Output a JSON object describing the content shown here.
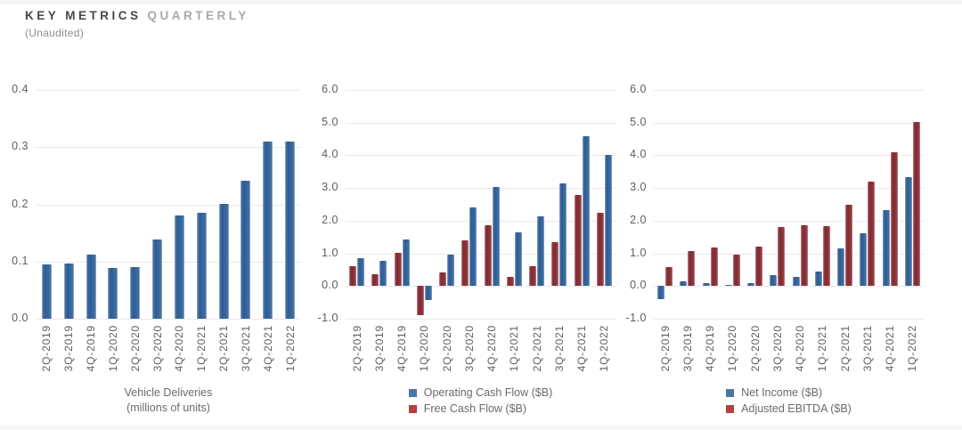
{
  "header": {
    "title_primary": "KEY METRICS",
    "title_secondary": "QUARTERLY",
    "subtitle": "(Unaudited)"
  },
  "colors": {
    "bar_blue": "#34619a",
    "bar_red": "#8c2f36",
    "legend_swatch_blue": "#4a77ab",
    "legend_swatch_red": "#b4403f",
    "gridline": "#eaeaea",
    "axis_text": "#5f5f5f",
    "legend_text": "#6b6b6b"
  },
  "chart_data": [
    {
      "type": "bar",
      "title": "Vehicle Deliveries (millions of units)",
      "legend_lines": [
        "Vehicle Deliveries",
        "(millions of units)"
      ],
      "legend_position": "bottom",
      "grid": true,
      "categories": [
        "2Q-2019",
        "3Q-2019",
        "4Q-2019",
        "1Q-2020",
        "2Q-2020",
        "3Q-2020",
        "4Q-2020",
        "1Q-2021",
        "2Q-2021",
        "3Q-2021",
        "4Q-2021",
        "1Q-2022"
      ],
      "series": [
        {
          "name": "Vehicle Deliveries",
          "color": "blue",
          "values": [
            0.095,
            0.097,
            0.112,
            0.088,
            0.091,
            0.139,
            0.181,
            0.185,
            0.201,
            0.241,
            0.309,
            0.31
          ]
        }
      ],
      "ylim": [
        0,
        0.4
      ],
      "yticks": [
        {
          "value": 0.4,
          "label": "0.4"
        },
        {
          "value": 0.3,
          "label": "0.3"
        },
        {
          "value": 0.2,
          "label": "0.2"
        },
        {
          "value": 0.1,
          "label": "0.1"
        },
        {
          "value": 0.0,
          "label": "0.0"
        }
      ]
    },
    {
      "type": "bar",
      "title": "Operating Cash Flow / Free Cash Flow ($B)",
      "legend": [
        {
          "label": "Operating Cash Flow ($B)",
          "color": "blue"
        },
        {
          "label": "Free Cash Flow ($B)",
          "color": "red"
        }
      ],
      "legend_position": "bottom",
      "grid": true,
      "categories": [
        "2Q-2019",
        "3Q-2019",
        "4Q-2019",
        "1Q-2020",
        "2Q-2020",
        "3Q-2020",
        "4Q-2020",
        "1Q-2021",
        "2Q-2021",
        "3Q-2021",
        "4Q-2021",
        "1Q-2022"
      ],
      "series": [
        {
          "name": "Free Cash Flow ($B)",
          "color": "red",
          "values": [
            0.61,
            0.37,
            1.01,
            -0.9,
            0.42,
            1.4,
            1.87,
            0.29,
            0.62,
            1.33,
            2.78,
            2.23
          ]
        },
        {
          "name": "Operating Cash Flow ($B)",
          "color": "blue",
          "values": [
            0.86,
            0.76,
            1.43,
            -0.44,
            0.96,
            2.4,
            3.02,
            1.64,
            2.12,
            3.15,
            4.59,
            4.0
          ]
        }
      ],
      "ylim": [
        -1,
        6
      ],
      "yticks": [
        {
          "value": 6,
          "label": "6.0"
        },
        {
          "value": 5,
          "label": "5.0"
        },
        {
          "value": 4,
          "label": "4.0"
        },
        {
          "value": 3,
          "label": "3.0"
        },
        {
          "value": 2,
          "label": "2.0"
        },
        {
          "value": 1,
          "label": "1.0"
        },
        {
          "value": 0,
          "label": "0.0"
        },
        {
          "value": -1,
          "label": "-1.0"
        }
      ]
    },
    {
      "type": "bar",
      "title": "Net Income / Adjusted EBITDA ($B)",
      "legend": [
        {
          "label": "Net Income ($B)",
          "color": "blue"
        },
        {
          "label": "Adjusted EBITDA ($B)",
          "color": "red"
        }
      ],
      "legend_position": "bottom",
      "grid": true,
      "categories": [
        "2Q-2019",
        "3Q-2019",
        "4Q-2019",
        "1Q-2020",
        "2Q-2020",
        "3Q-2020",
        "4Q-2020",
        "1Q-2021",
        "2Q-2021",
        "3Q-2021",
        "4Q-2021",
        "1Q-2022"
      ],
      "series": [
        {
          "name": "Net Income ($B)",
          "color": "blue",
          "values": [
            -0.41,
            0.14,
            0.1,
            0.02,
            0.1,
            0.33,
            0.27,
            0.44,
            1.14,
            1.62,
            2.32,
            3.32
          ]
        },
        {
          "name": "Adjusted EBITDA ($B)",
          "color": "red",
          "values": [
            0.57,
            1.08,
            1.18,
            0.95,
            1.21,
            1.81,
            1.85,
            1.84,
            2.49,
            3.2,
            4.09,
            5.02
          ]
        }
      ],
      "ylim": [
        -1,
        6
      ],
      "yticks": [
        {
          "value": 6,
          "label": "6.0"
        },
        {
          "value": 5,
          "label": "5.0"
        },
        {
          "value": 4,
          "label": "4.0"
        },
        {
          "value": 3,
          "label": "3.0"
        },
        {
          "value": 2,
          "label": "2.0"
        },
        {
          "value": 1,
          "label": "1.0"
        },
        {
          "value": 0,
          "label": "0.0"
        },
        {
          "value": -1,
          "label": "-1.0"
        }
      ]
    }
  ]
}
